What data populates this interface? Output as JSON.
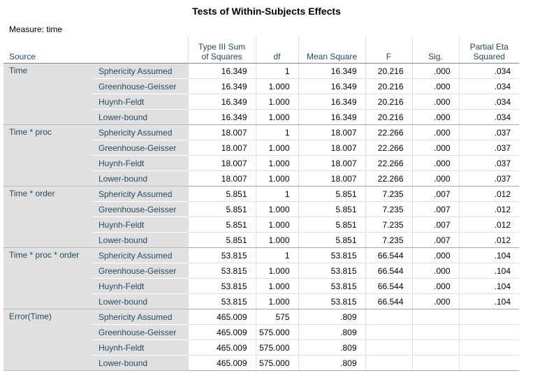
{
  "title": "Tests of Within-Subjects Effects",
  "measure": "Measure:   time",
  "headers": {
    "source": "Source",
    "ss_line1": "Type III Sum",
    "ss_line2": "of Squares",
    "df": "df",
    "ms": "Mean Square",
    "f": "F",
    "sig": "Sig.",
    "eta_line1": "Partial Eta",
    "eta_line2": "Squared"
  },
  "groups": [
    {
      "source": "Time",
      "rows": [
        {
          "method": "Sphericity Assumed",
          "ss": "16.349",
          "df": "1",
          "ms": "16.349",
          "f": "20.216",
          "sig": ".000",
          "eta": ".034"
        },
        {
          "method": "Greenhouse-Geisser",
          "ss": "16.349",
          "df": "1.000",
          "ms": "16.349",
          "f": "20.216",
          "sig": ".000",
          "eta": ".034"
        },
        {
          "method": "Huynh-Feldt",
          "ss": "16.349",
          "df": "1.000",
          "ms": "16.349",
          "f": "20.216",
          "sig": ".000",
          "eta": ".034"
        },
        {
          "method": "Lower-bound",
          "ss": "16.349",
          "df": "1.000",
          "ms": "16.349",
          "f": "20.216",
          "sig": ".000",
          "eta": ".034"
        }
      ]
    },
    {
      "source": "Time * proc",
      "rows": [
        {
          "method": "Sphericity Assumed",
          "ss": "18.007",
          "df": "1",
          "ms": "18.007",
          "f": "22.266",
          "sig": ".000",
          "eta": ".037"
        },
        {
          "method": "Greenhouse-Geisser",
          "ss": "18.007",
          "df": "1.000",
          "ms": "18.007",
          "f": "22.266",
          "sig": ".000",
          "eta": ".037"
        },
        {
          "method": "Huynh-Feldt",
          "ss": "18.007",
          "df": "1.000",
          "ms": "18.007",
          "f": "22.266",
          "sig": ".000",
          "eta": ".037"
        },
        {
          "method": "Lower-bound",
          "ss": "18.007",
          "df": "1.000",
          "ms": "18.007",
          "f": "22.266",
          "sig": ".000",
          "eta": ".037"
        }
      ]
    },
    {
      "source": "Time * order",
      "rows": [
        {
          "method": "Sphericity Assumed",
          "ss": "5.851",
          "df": "1",
          "ms": "5.851",
          "f": "7.235",
          "sig": ".007",
          "eta": ".012"
        },
        {
          "method": "Greenhouse-Geisser",
          "ss": "5.851",
          "df": "1.000",
          "ms": "5.851",
          "f": "7.235",
          "sig": ".007",
          "eta": ".012"
        },
        {
          "method": "Huynh-Feldt",
          "ss": "5.851",
          "df": "1.000",
          "ms": "5.851",
          "f": "7.235",
          "sig": ".007",
          "eta": ".012"
        },
        {
          "method": "Lower-bound",
          "ss": "5.851",
          "df": "1.000",
          "ms": "5.851",
          "f": "7.235",
          "sig": ".007",
          "eta": ".012"
        }
      ]
    },
    {
      "source": "Time * proc  *  order",
      "rows": [
        {
          "method": "Sphericity Assumed",
          "ss": "53.815",
          "df": "1",
          "ms": "53.815",
          "f": "66.544",
          "sig": ".000",
          "eta": ".104"
        },
        {
          "method": "Greenhouse-Geisser",
          "ss": "53.815",
          "df": "1.000",
          "ms": "53.815",
          "f": "66.544",
          "sig": ".000",
          "eta": ".104"
        },
        {
          "method": "Huynh-Feldt",
          "ss": "53.815",
          "df": "1.000",
          "ms": "53.815",
          "f": "66.544",
          "sig": ".000",
          "eta": ".104"
        },
        {
          "method": "Lower-bound",
          "ss": "53.815",
          "df": "1.000",
          "ms": "53.815",
          "f": "66.544",
          "sig": ".000",
          "eta": ".104"
        }
      ]
    },
    {
      "source": "Error(Time)",
      "rows": [
        {
          "method": "Sphericity Assumed",
          "ss": "465.009",
          "df": "575",
          "ms": ".809",
          "f": "",
          "sig": "",
          "eta": ""
        },
        {
          "method": "Greenhouse-Geisser",
          "ss": "465.009",
          "df": "575.000",
          "ms": ".809",
          "f": "",
          "sig": "",
          "eta": ""
        },
        {
          "method": "Huynh-Feldt",
          "ss": "465.009",
          "df": "575.000",
          "ms": ".809",
          "f": "",
          "sig": "",
          "eta": ""
        },
        {
          "method": "Lower-bound",
          "ss": "465.009",
          "df": "575.000",
          "ms": ".809",
          "f": "",
          "sig": "",
          "eta": ""
        }
      ]
    }
  ],
  "colors": {
    "label_text": "#264a60",
    "label_bg": "#e0e0e0",
    "grid": "#e0e0e0"
  }
}
